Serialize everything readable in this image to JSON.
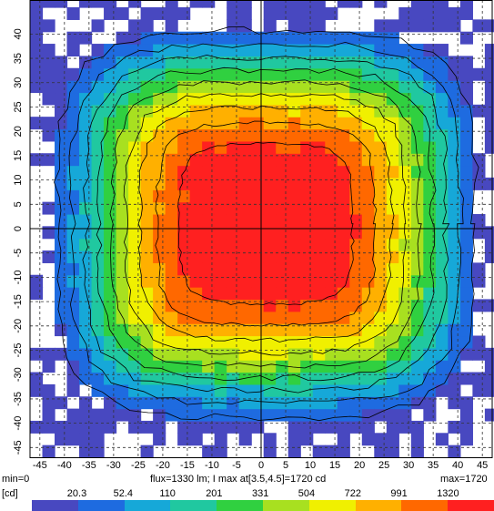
{
  "chart_data": {
    "type": "heatmap",
    "title": "",
    "xlabel": "",
    "ylabel": "",
    "xlim": [
      -47,
      47
    ],
    "ylim": [
      -47,
      47
    ],
    "x_ticks": [
      -45,
      -40,
      -35,
      -30,
      -25,
      -20,
      -15,
      -10,
      -5,
      0,
      5,
      10,
      15,
      20,
      25,
      30,
      35,
      40,
      45
    ],
    "y_ticks": [
      40,
      35,
      30,
      25,
      20,
      15,
      10,
      5,
      0,
      -5,
      -10,
      -15,
      -20,
      -25,
      -30,
      -35,
      -40,
      -45
    ],
    "grid": true,
    "units": "cd",
    "min_label": "min=0",
    "max_label": "max=1720",
    "summary": "flux=1330 lm; I max at[3.5,4.5]=1720 cd",
    "max_value": 1720,
    "peak": [
      3.5,
      4.5
    ],
    "legend_unit": "[cd]",
    "legend_labels": [
      "20.3",
      "52.4",
      "110",
      "201",
      "331",
      "504",
      "722",
      "991",
      "1320"
    ],
    "colorscale": [
      "#4848c0",
      "#1e6be0",
      "#16a8d8",
      "#20c8a0",
      "#30d040",
      "#a8e020",
      "#f0f000",
      "#ffb000",
      "#ff6800",
      "#ff2020"
    ]
  }
}
